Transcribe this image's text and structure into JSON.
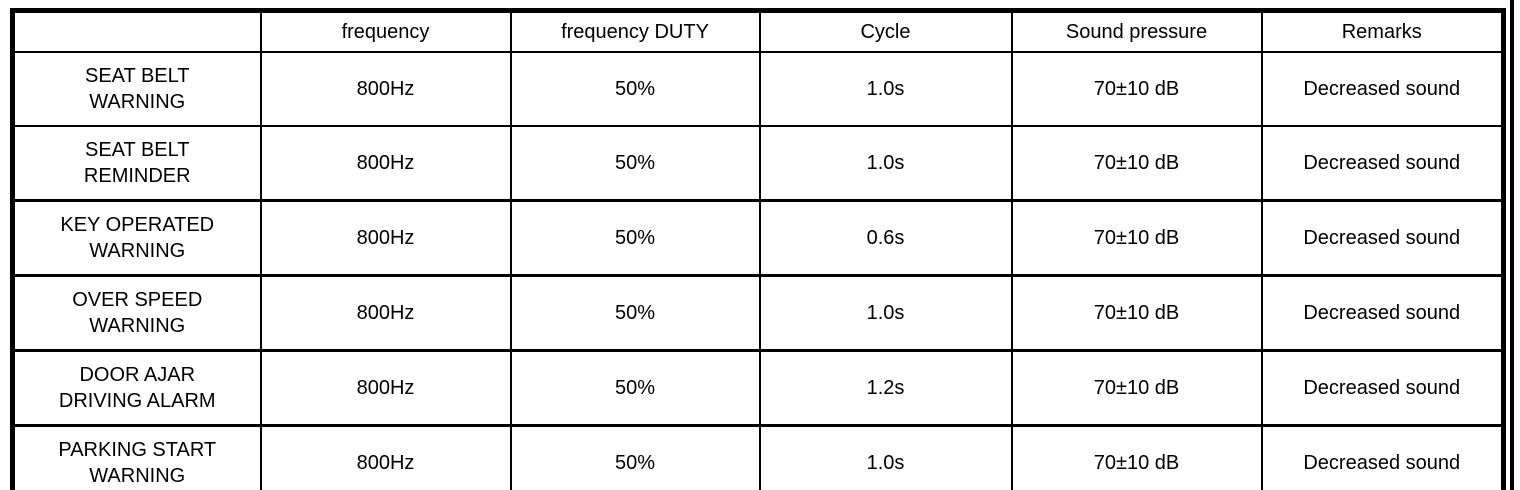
{
  "table": {
    "columns": [
      "",
      "frequency",
      "frequency DUTY",
      "Cycle",
      "Sound pressure",
      "Remarks"
    ],
    "rows": [
      {
        "name": "SEAT BELT\nWARNING",
        "frequency": "800Hz",
        "duty": "50%",
        "cycle": "1.0s",
        "sound_pressure": "70±10 dB",
        "remarks": "Decreased sound"
      },
      {
        "name": "SEAT BELT\nREMINDER",
        "frequency": "800Hz",
        "duty": "50%",
        "cycle": "1.0s",
        "sound_pressure": "70±10 dB",
        "remarks": "Decreased sound"
      },
      {
        "name": "KEY OPERATED\nWARNING",
        "frequency": "800Hz",
        "duty": "50%",
        "cycle": "0.6s",
        "sound_pressure": "70±10 dB",
        "remarks": "Decreased sound"
      },
      {
        "name": "OVER SPEED\nWARNING",
        "frequency": "800Hz",
        "duty": "50%",
        "cycle": "1.0s",
        "sound_pressure": "70±10 dB",
        "remarks": "Decreased sound"
      },
      {
        "name": "DOOR AJAR\nDRIVING ALARM",
        "frequency": "800Hz",
        "duty": "50%",
        "cycle": "1.2s",
        "sound_pressure": "70±10 dB",
        "remarks": "Decreased sound"
      },
      {
        "name": "PARKING START\nWARNING",
        "frequency": "800Hz",
        "duty": "50%",
        "cycle": "1.0s",
        "sound_pressure": "70±10 dB",
        "remarks": "Decreased sound"
      }
    ]
  }
}
